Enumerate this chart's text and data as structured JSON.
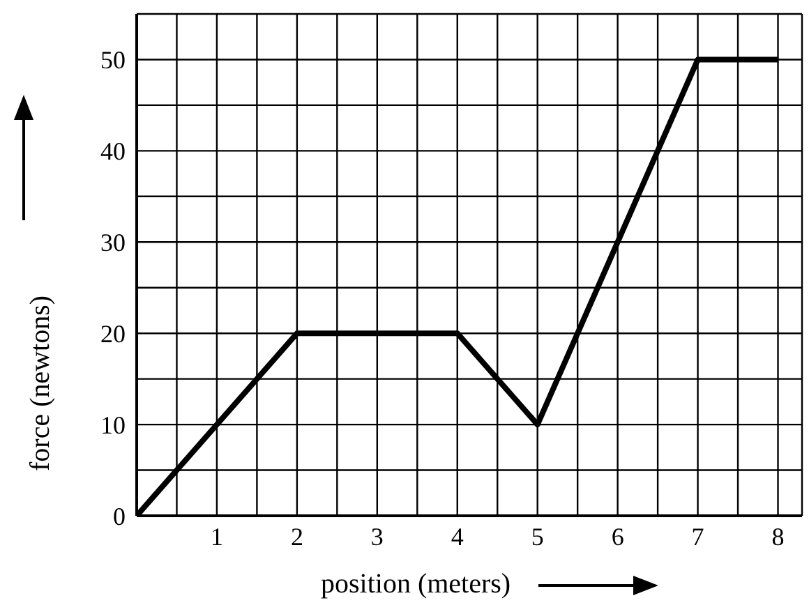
{
  "chart_data": {
    "type": "line",
    "xlabel": "position (meters)",
    "ylabel": "force (newtons)",
    "x": [
      0,
      2,
      4,
      5,
      7,
      8
    ],
    "series": [
      {
        "color": "#000000",
        "values": [
          0,
          20,
          20,
          10,
          50,
          50
        ]
      }
    ],
    "xlim": [
      0,
      8.3
    ],
    "xticks": [
      {
        "value": 0,
        "label": null
      },
      {
        "value": 0.5,
        "label": null
      },
      1,
      {
        "value": 1.5,
        "label": null
      },
      2,
      {
        "value": 2.5,
        "label": null
      },
      3,
      {
        "value": 3.5,
        "label": null
      },
      4,
      {
        "value": 4.5,
        "label": null
      },
      5,
      {
        "value": 5.5,
        "label": null
      },
      6,
      {
        "value": 6.5,
        "label": null
      },
      7,
      {
        "value": 7.5,
        "label": null
      },
      8
    ],
    "ylim": [
      0,
      55
    ],
    "yticks": [
      0,
      {
        "value": 5,
        "label": null
      },
      10,
      {
        "value": 15,
        "label": null
      },
      20,
      {
        "value": 25,
        "label": null
      },
      30,
      {
        "value": 35,
        "label": null
      },
      40,
      {
        "value": 45,
        "label": null
      },
      50,
      {
        "value": 55,
        "label": null
      }
    ],
    "grid": true,
    "marker": "none",
    "line_style": "solid"
  }
}
